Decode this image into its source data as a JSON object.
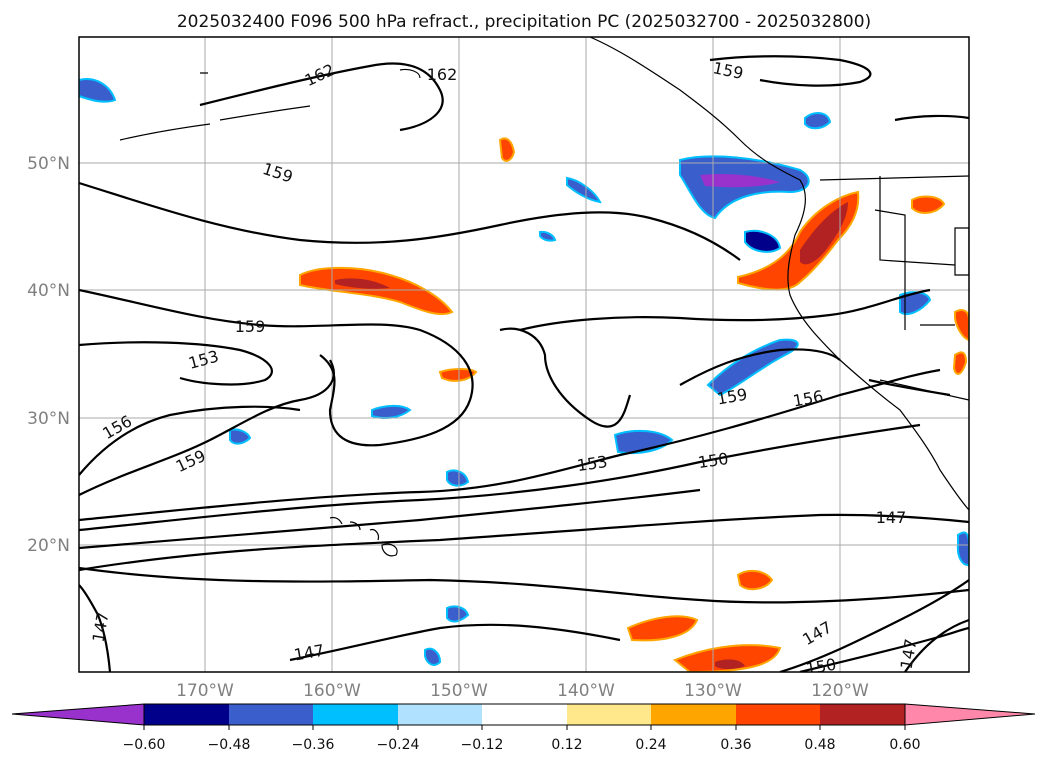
{
  "title": "2025032400 F096 500 hPa refract., precipitation PC (2025032700 - 2025032800)",
  "lat_labels": [
    "50°N",
    "40°N",
    "30°N",
    "20°N"
  ],
  "lon_labels": [
    "170°W",
    "160°W",
    "150°W",
    "140°W",
    "130°W",
    "120°W"
  ],
  "contour_labels": [
    "162",
    "162",
    "159",
    "159",
    "159",
    "153",
    "156",
    "159",
    "159",
    "156",
    "153",
    "150",
    "147",
    "147",
    "147",
    "147",
    "150",
    "147"
  ],
  "colorbar": {
    "ticks": [
      "−0.60",
      "−0.48",
      "−0.36",
      "−0.24",
      "−0.12",
      "0.12",
      "0.24",
      "0.36",
      "0.48",
      "0.60"
    ],
    "colors": [
      "#9932cc",
      "#00008b",
      "#3a5fcd",
      "#00bfff",
      "#b0e2ff",
      "#ffffff",
      "#ffe78c",
      "#ffa500",
      "#ff4500",
      "#b22222",
      "#ff88aa"
    ]
  },
  "colors": {
    "contour": "#000000",
    "coast": "#000000",
    "grid": "#aaaaaa"
  }
}
